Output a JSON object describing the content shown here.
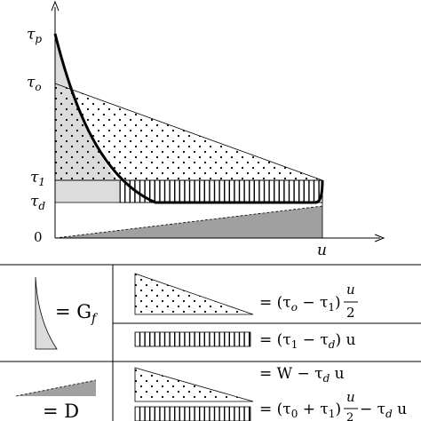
{
  "axis": {
    "y_labels": {
      "tau_p": "τ",
      "tau_p_sub": "p",
      "tau_o": "τ",
      "tau_o_sub": "o",
      "tau_1": "τ",
      "tau_1_sub": "1",
      "tau_d": "τ",
      "tau_d_sub": "d",
      "zero": "0"
    },
    "x_label": "u"
  },
  "legend": {
    "gf": {
      "eq": "= G",
      "sub": "f"
    },
    "d": {
      "eq": "= D"
    },
    "dotted_formula": {
      "pre": "= (τ",
      "s1": "o",
      "mid": " − τ",
      "s2": "1",
      "post": ")",
      "num": "u",
      "den": "2"
    },
    "hatched_formula": {
      "pre": "= (τ",
      "s1": "1",
      "mid": " − τ",
      "s2": "d",
      "post": ") u"
    },
    "w_formula": {
      "pre": "= W − τ",
      "s1": "d",
      "post": " u"
    },
    "sum_formula": {
      "pre": "= (τ",
      "s1": "0",
      "mid": " + τ",
      "s2": "1",
      "post": ")",
      "num": "u",
      "den": "2",
      "tail": " − τ",
      "s3": "d",
      "tail2": " u"
    }
  },
  "colors": {
    "light_gray": "#dcdcdc",
    "dark_gray": "#a0a0a0",
    "line": "#000000"
  }
}
